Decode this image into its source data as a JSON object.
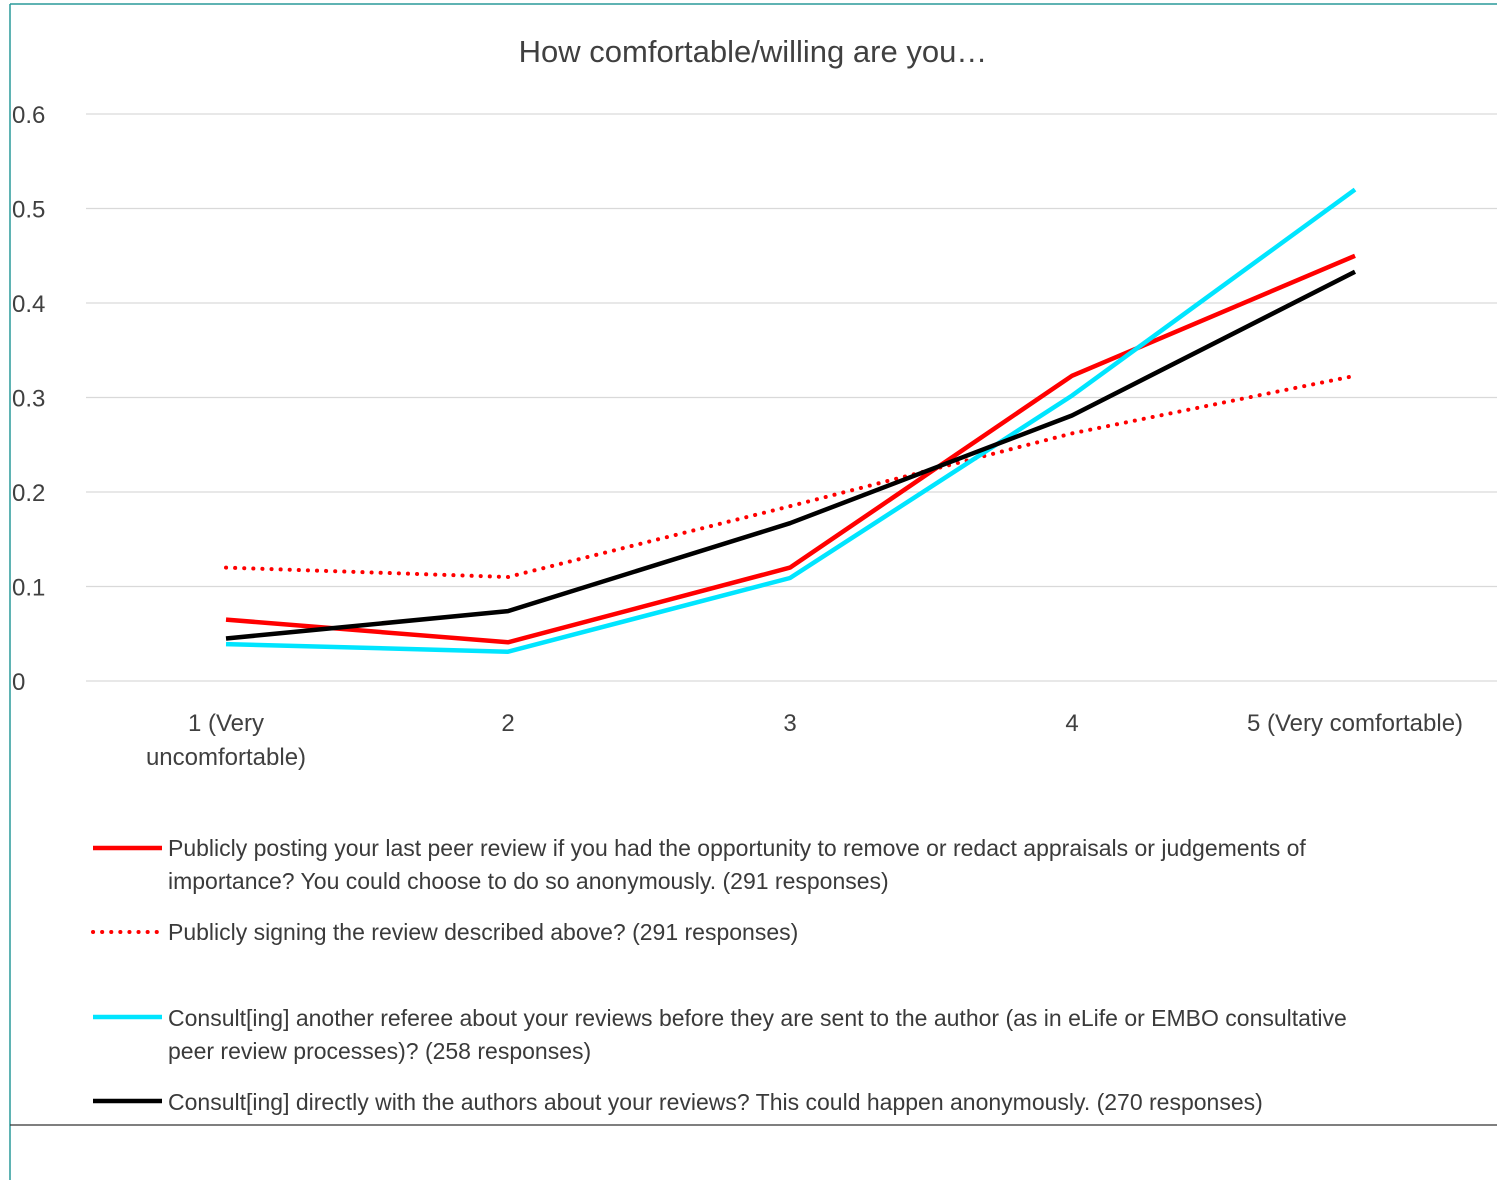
{
  "chart_data": {
    "type": "line",
    "title": "How comfortable/willing are you…",
    "categories": [
      "1 (Very uncomfortable)",
      "2",
      "3",
      "4",
      "5 (Very comfortable)"
    ],
    "category_lines": [
      [
        "1 (Very",
        "uncomfortable)"
      ],
      [
        "2"
      ],
      [
        "3"
      ],
      [
        "4"
      ],
      [
        "5 (Very comfortable)"
      ]
    ],
    "ylim": [
      0,
      0.6
    ],
    "yticks": [
      "0",
      "0.1",
      "0.2",
      "0.3",
      "0.4",
      "0.5",
      "0.6"
    ],
    "grid": true,
    "legend_position": "bottom",
    "series": [
      {
        "name": "Publicly posting your last peer review if you had the opportunity to remove or redact appraisals or judgements of importance? You could choose to do so anonymously. (291 responses)",
        "values": [
          0.065,
          0.041,
          0.12,
          0.323,
          0.45
        ],
        "color": "#ff0000",
        "dash": "solid"
      },
      {
        "name": "Publicly signing the review described above? (291 responses)",
        "values": [
          0.12,
          0.11,
          0.185,
          0.262,
          0.323
        ],
        "color": "#ff0000",
        "dash": "dotted"
      },
      {
        "name": "Consult[ing] another referee about your reviews before they are sent to the author (as in eLife or EMBO consultative peer review processes)? (258 responses)",
        "values": [
          0.039,
          0.031,
          0.109,
          0.302,
          0.52
        ],
        "color": "#00e5ff",
        "dash": "solid"
      },
      {
        "name": "Consult[ing] directly with the authors about your reviews? This could happen anonymously. (270 responses)",
        "values": [
          0.045,
          0.074,
          0.167,
          0.281,
          0.433
        ],
        "color": "#000000",
        "dash": "solid"
      }
    ]
  }
}
